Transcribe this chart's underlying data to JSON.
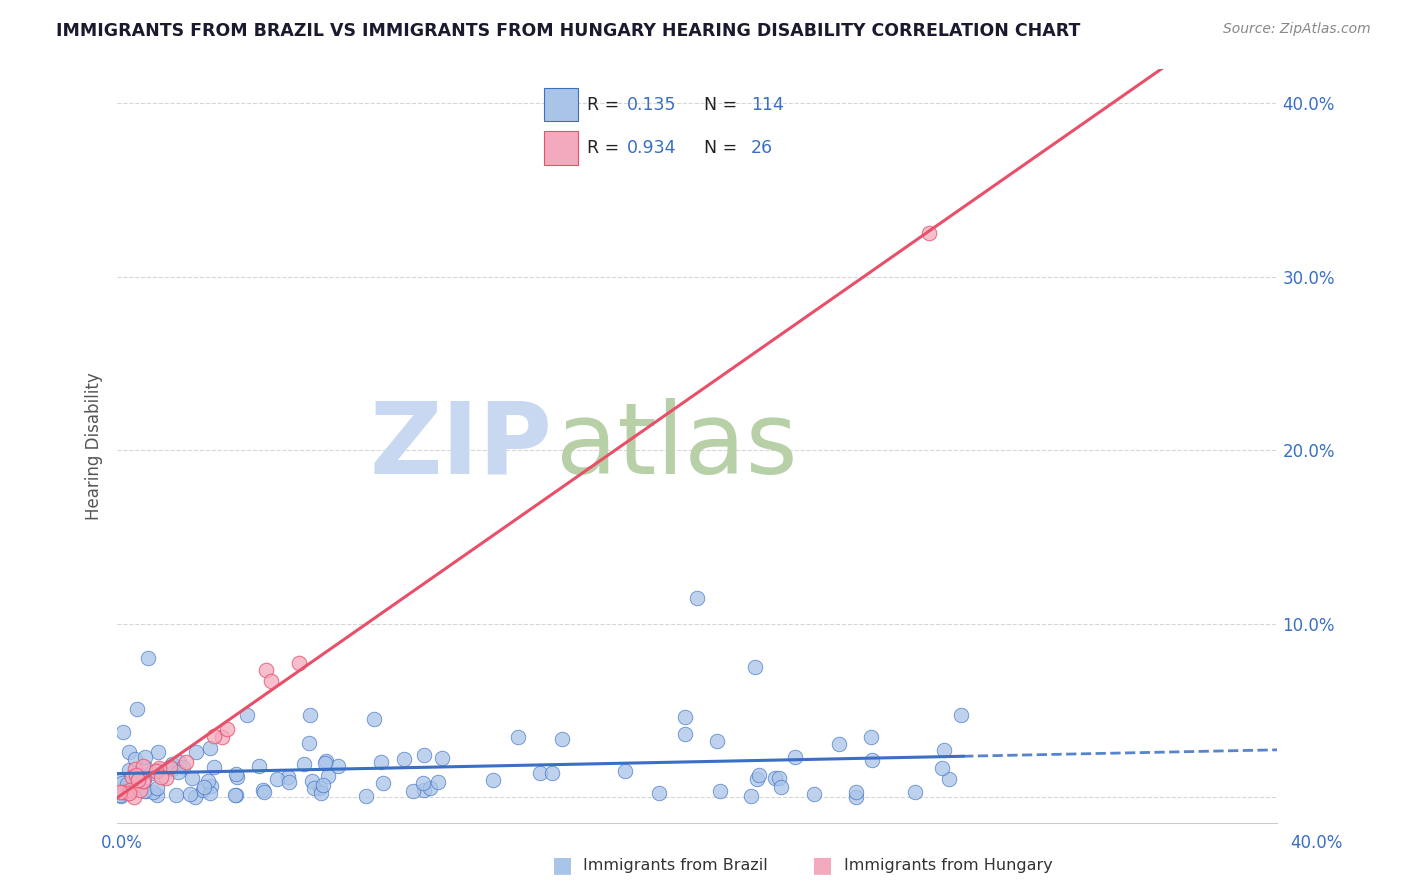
{
  "title": "IMMIGRANTS FROM BRAZIL VS IMMIGRANTS FROM HUNGARY HEARING DISABILITY CORRELATION CHART",
  "source": "Source: ZipAtlas.com",
  "ylabel": "Hearing Disability",
  "xlim": [
    0.0,
    0.4
  ],
  "ylim": [
    -0.015,
    0.42
  ],
  "brazil_R": 0.135,
  "brazil_N": 114,
  "hungary_R": 0.934,
  "hungary_N": 26,
  "brazil_color": "#aac4e8",
  "hungary_color": "#f4aabe",
  "brazil_line_color": "#3a6fc4",
  "hungary_line_color": "#e8506a",
  "legend_label_brazil": "Immigrants from Brazil",
  "legend_label_hungary": "Immigrants from Hungary",
  "watermark_zip": "ZIP",
  "watermark_atlas": "atlas",
  "watermark_color_zip": "#c8d8f0",
  "watermark_color_atlas": "#b8d0a8",
  "background_color": "#ffffff",
  "grid_color": "#cccccc",
  "title_color": "#1a1a2e",
  "source_color": "#888888",
  "axis_label_color": "#3a6fc4",
  "ytick_positions": [
    0.0,
    0.1,
    0.2,
    0.3,
    0.4
  ],
  "ytick_labels": [
    "",
    "10.0%",
    "20.0%",
    "30.0%",
    "40.0%"
  ]
}
